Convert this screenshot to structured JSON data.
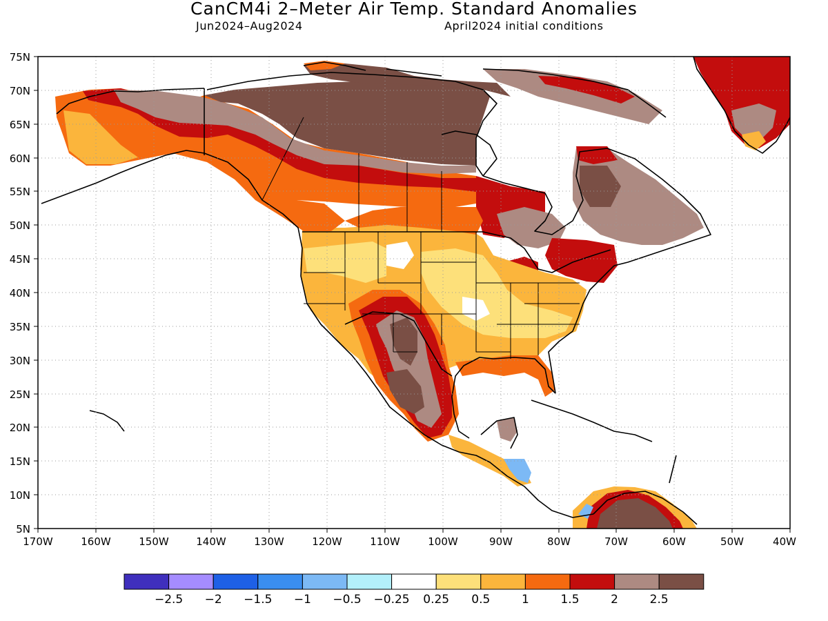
{
  "title": "CanCM4i 2–Meter Air Temp. Standard Anomalies",
  "subtitle_left": "Jun2024–Aug2024",
  "subtitle_right": "April2024 initial conditions",
  "map": {
    "lon_range": [
      -170,
      -40
    ],
    "lat_range": [
      5,
      75
    ],
    "lat_ticks": [
      "75N",
      "70N",
      "65N",
      "60N",
      "55N",
      "50N",
      "45N",
      "40N",
      "35N",
      "30N",
      "25N",
      "20N",
      "15N",
      "10N",
      "5N"
    ],
    "lon_ticks": [
      "170W",
      "160W",
      "150W",
      "140W",
      "130W",
      "120W",
      "110W",
      "100W",
      "90W",
      "80W",
      "70W",
      "60W",
      "50W",
      "40W"
    ],
    "grid": "dotted"
  },
  "colorbar": {
    "colors": [
      "#3f2fbd",
      "#a58cff",
      "#1e60e6",
      "#3a8ef0",
      "#7cb9f5",
      "#b3f0fb",
      "#ffffff",
      "#fde07a",
      "#fbb53c",
      "#f56a10",
      "#c30d0d",
      "#ad8a82",
      "#7a4f45"
    ],
    "labels": [
      "−2.5",
      "−2",
      "−1.5",
      "−1",
      "−0.5",
      "−0.25",
      "0.25",
      "0.5",
      "1",
      "1.5",
      "2",
      "2.5"
    ]
  }
}
